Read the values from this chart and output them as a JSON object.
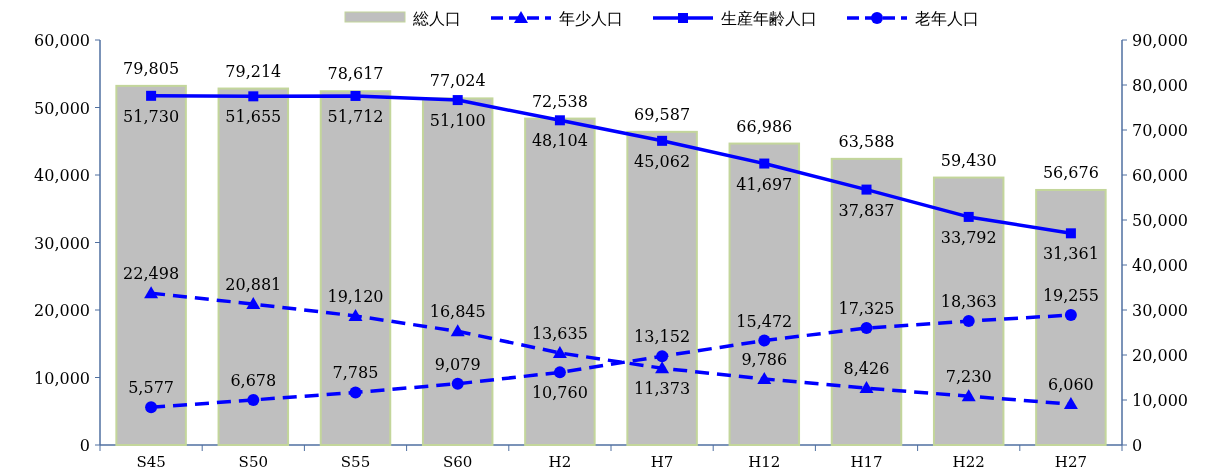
{
  "chart_data": {
    "type": "bar",
    "categories": [
      "S45",
      "S50",
      "S55",
      "S60",
      "H2",
      "H7",
      "H12",
      "H17",
      "H22",
      "H27"
    ],
    "series": [
      {
        "name": "総人口",
        "axis": "y2",
        "color": "#bfbfbf",
        "values": [
          79805,
          79214,
          78617,
          77024,
          72538,
          69587,
          66986,
          63588,
          59430,
          56676
        ],
        "value_labels": [
          "79,805",
          "79,214",
          "78,617",
          "77,024",
          "72,538",
          "69,587",
          "66,986",
          "63,588",
          "59,430",
          "56,676"
        ]
      },
      {
        "name": "年少人口",
        "type": "line",
        "color": "#0000ff",
        "marker": "triangle",
        "line_style": "dashed",
        "values": [
          22498,
          20881,
          19120,
          16845,
          13635,
          11373,
          9786,
          8426,
          7230,
          6060
        ],
        "value_labels": [
          "22,498",
          "20,881",
          "19,120",
          "16,845",
          "13,635",
          "11,373",
          "9,786",
          "8,426",
          "7,230",
          "6,060"
        ]
      },
      {
        "name": "生産年齢人口",
        "type": "line",
        "color": "#0000ff",
        "marker": "square",
        "line_style": "solid",
        "values": [
          51730,
          51655,
          51712,
          51100,
          48104,
          45062,
          41697,
          37837,
          33792,
          31361
        ],
        "value_labels": [
          "51,730",
          "51,655",
          "51,712",
          "51,100",
          "48,104",
          "45,062",
          "41,697",
          "37,837",
          "33,792",
          "31,361"
        ]
      },
      {
        "name": "老年人口",
        "type": "line",
        "color": "#0000ff",
        "marker": "circle",
        "line_style": "dashed",
        "values": [
          5577,
          6678,
          7785,
          9079,
          10760,
          13152,
          15472,
          17325,
          18363,
          19255
        ],
        "value_labels": [
          "5,577",
          "6,678",
          "7,785",
          "9,079",
          "10,760",
          "13,152",
          "15,472",
          "17,325",
          "18,363",
          "19,255"
        ]
      }
    ],
    "ylim": [
      0,
      60000
    ],
    "yticks": [
      {
        "value": 0,
        "label": "0"
      },
      {
        "value": 10000,
        "label": "10,000"
      },
      {
        "value": 20000,
        "label": "20,000"
      },
      {
        "value": 30000,
        "label": "30,000"
      },
      {
        "value": 40000,
        "label": "40,000"
      },
      {
        "value": 50000,
        "label": "50,000"
      },
      {
        "value": 60000,
        "label": "60,000"
      }
    ],
    "y2lim": [
      0,
      90000
    ],
    "y2ticks": [
      {
        "value": 0,
        "label": "0"
      },
      {
        "value": 10000,
        "label": "10,000"
      },
      {
        "value": 20000,
        "label": "20,000"
      },
      {
        "value": 30000,
        "label": "30,000"
      },
      {
        "value": 40000,
        "label": "40,000"
      },
      {
        "value": 50000,
        "label": "50,000"
      },
      {
        "value": 60000,
        "label": "60,000"
      },
      {
        "value": 70000,
        "label": "70,000"
      },
      {
        "value": 80000,
        "label": "80,000"
      },
      {
        "value": 90000,
        "label": "90,000"
      }
    ],
    "legend": "top",
    "grid": false
  }
}
